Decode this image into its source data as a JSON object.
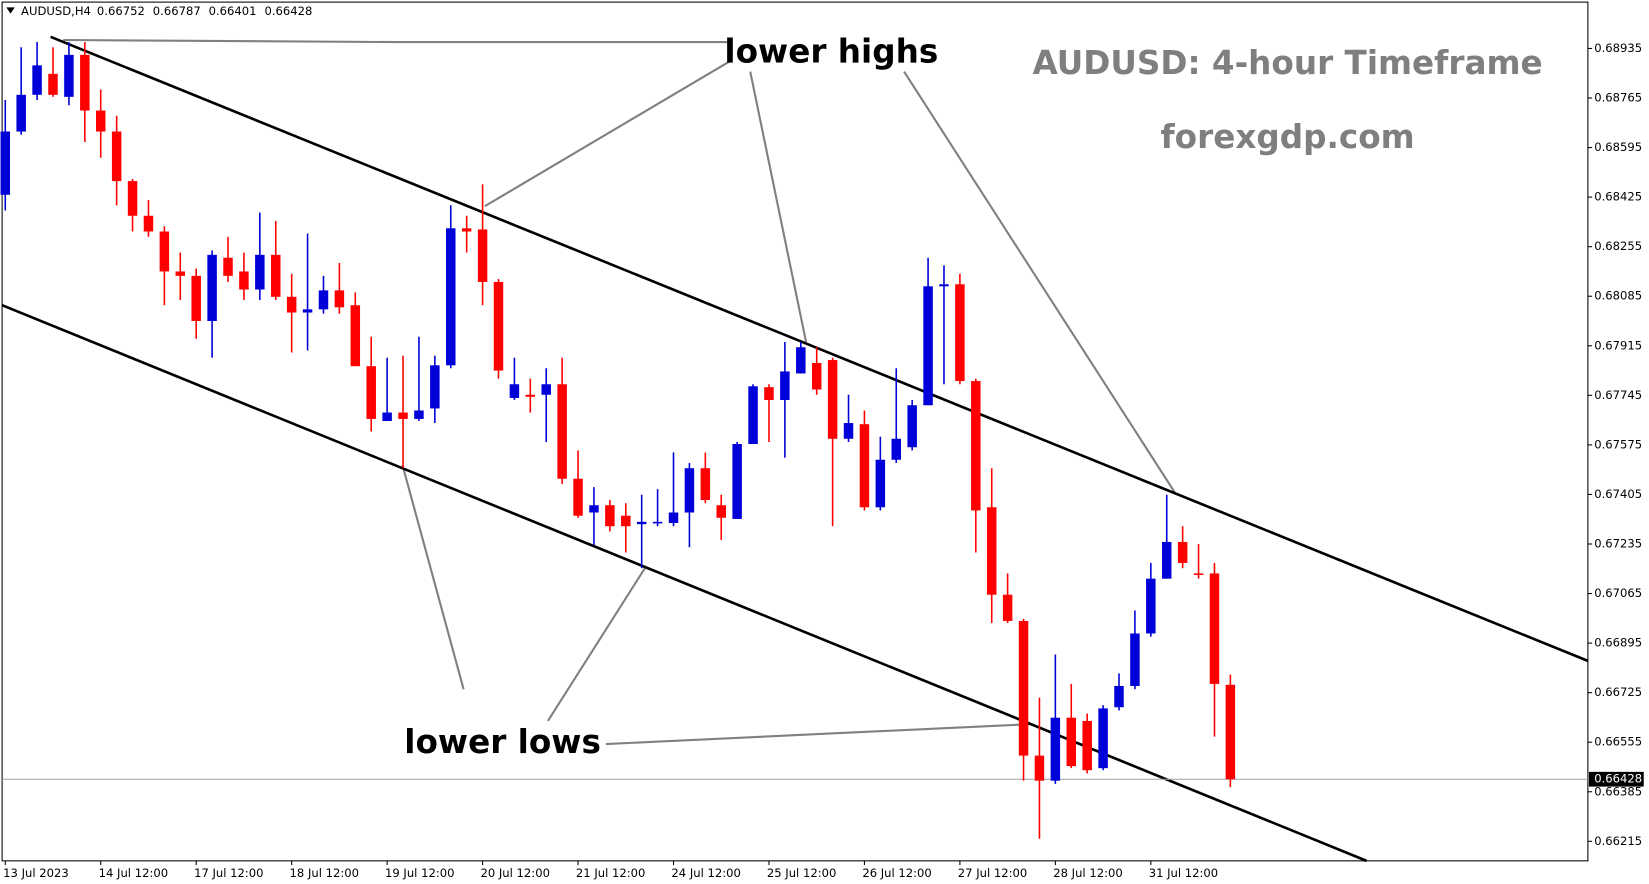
{
  "chart_data": {
    "type": "candlestick",
    "symbol": "AUDUSD,H4",
    "title": "AUDUSD: 4-hour Timeframe",
    "subtitle": "forexgdp.com",
    "annotations": [
      "lower highs",
      "lower lows"
    ],
    "up_color": "#0000d8",
    "down_color": "#ff0000",
    "categories": [
      "13 Jul 2023",
      null,
      null,
      null,
      null,
      null,
      "14 Jul 12:00",
      null,
      null,
      null,
      null,
      null,
      "17 Jul 12:00",
      null,
      null,
      null,
      null,
      null,
      "18 Jul 12:00",
      null,
      null,
      null,
      null,
      null,
      "19 Jul 12:00",
      null,
      null,
      null,
      null,
      null,
      "20 Jul 12:00",
      null,
      null,
      null,
      null,
      null,
      "21 Jul 12:00",
      null,
      null,
      null,
      null,
      null,
      "24 Jul 12:00",
      null,
      null,
      null,
      null,
      null,
      "25 Jul 12:00",
      null,
      null,
      null,
      null,
      null,
      "26 Jul 12:00",
      null,
      null,
      null,
      null,
      null,
      "27 Jul 12:00",
      null,
      null,
      null,
      null,
      null,
      "28 Jul 12:00",
      null,
      null,
      null,
      null,
      null,
      "31 Jul 12:00",
      null,
      null,
      null,
      null,
      null
    ],
    "open": [
      0.68433,
      0.6865,
      0.68776,
      0.68848,
      0.68769,
      0.68913,
      0.68722,
      0.6865,
      0.6848,
      0.68361,
      0.68307,
      0.6817,
      0.68155,
      0.68,
      0.68217,
      0.6817,
      0.68108,
      0.68227,
      0.68083,
      0.68029,
      0.6804,
      0.68105,
      0.68054,
      0.67845,
      0.67657,
      0.67686,
      0.67664,
      0.677,
      0.67848,
      0.68318,
      0.68314,
      0.68134,
      0.67736,
      0.67747,
      0.67747,
      0.67783,
      0.67459,
      0.67343,
      0.67368,
      0.67332,
      0.67303,
      0.67307,
      0.67307,
      0.67343,
      0.67495,
      0.67368,
      0.67321,
      0.67578,
      0.67773,
      0.67729,
      0.6782,
      0.67856,
      0.67866,
      0.67596,
      0.67646,
      0.67361,
      0.67524,
      0.67567,
      0.67711,
      0.68119,
      0.68126,
      0.67794,
      0.67361,
      0.67061,
      0.66971,
      0.66509,
      0.66423,
      0.66639,
      0.66628,
      0.66466,
      0.66675,
      0.66748,
      0.66928,
      0.67116,
      0.67242,
      0.67134,
      0.67134,
      0.66752
    ],
    "high": [
      0.68758,
      0.68939,
      0.68957,
      0.68939,
      0.68957,
      0.68957,
      0.68794,
      0.68704,
      0.68487,
      0.68415,
      0.68325,
      0.68235,
      0.6818,
      0.68242,
      0.68289,
      0.68235,
      0.68372,
      0.68343,
      0.68162,
      0.683,
      0.68155,
      0.68199,
      0.68098,
      0.67946,
      0.67874,
      0.67881,
      0.67946,
      0.67881,
      0.68397,
      0.68361,
      0.68469,
      0.68144,
      0.67874,
      0.67802,
      0.67838,
      0.67874,
      0.67556,
      0.6743,
      0.67386,
      0.67375,
      0.67404,
      0.67423,
      0.67549,
      0.67513,
      0.67549,
      0.67404,
      0.67585,
      0.67783,
      0.67783,
      0.67928,
      0.67928,
      0.6791,
      0.67874,
      0.67747,
      0.67693,
      0.67603,
      0.67838,
      0.67729,
      0.68217,
      0.68191,
      0.68162,
      0.67802,
      0.67495,
      0.67134,
      0.66978,
      0.66708,
      0.66856,
      0.66755,
      0.66653,
      0.66682,
      0.66791,
      0.67007,
      0.6717,
      0.67404,
      0.67296,
      0.67235,
      0.6717,
      0.66787
    ],
    "low": [
      0.68379,
      0.68639,
      0.68758,
      0.68769,
      0.6874,
      0.68614,
      0.6856,
      0.68397,
      0.68307,
      0.68289,
      0.68054,
      0.68072,
      0.67939,
      0.67874,
      0.68134,
      0.68072,
      0.68072,
      0.68072,
      0.67892,
      0.67899,
      0.68025,
      0.68025,
      0.67845,
      0.67621,
      0.67657,
      0.67495,
      0.67657,
      0.6765,
      0.67838,
      0.68235,
      0.68054,
      0.67802,
      0.67729,
      0.67686,
      0.67585,
      0.67441,
      0.67325,
      0.67231,
      0.67278,
      0.67206,
      0.67152,
      0.67296,
      0.67296,
      0.67224,
      0.67375,
      0.67249,
      0.67321,
      0.67578,
      0.67585,
      0.67531,
      0.6782,
      0.67747,
      0.67296,
      0.67585,
      0.6735,
      0.6735,
      0.67513,
      0.67556,
      0.67711,
      0.67783,
      0.67783,
      0.67206,
      0.66964,
      0.66964,
      0.66423,
      0.66224,
      0.66412,
      0.66466,
      0.66448,
      0.66459,
      0.66664,
      0.66737,
      0.66917,
      0.67116,
      0.67152,
      0.67116,
      0.66574,
      0.66401
    ],
    "close": [
      0.6865,
      0.68776,
      0.68877,
      0.68776,
      0.68913,
      0.68722,
      0.6865,
      0.6848,
      0.68361,
      0.68307,
      0.6817,
      0.68155,
      0.68,
      0.68227,
      0.68155,
      0.68108,
      0.68227,
      0.68083,
      0.68029,
      0.6804,
      0.68105,
      0.68047,
      0.67845,
      0.67664,
      0.67686,
      0.67664,
      0.67693,
      0.67848,
      0.68318,
      0.68307,
      0.68134,
      0.6783,
      0.67783,
      0.6774,
      0.67783,
      0.67459,
      0.67332,
      0.67368,
      0.67296,
      0.67296,
      0.67311,
      0.67311,
      0.67343,
      0.67495,
      0.67386,
      0.67325,
      0.67578,
      0.67776,
      0.67729,
      0.67827,
      0.6791,
      0.67765,
      0.67596,
      0.6765,
      0.67361,
      0.67524,
      0.67596,
      0.67711,
      0.68119,
      0.68126,
      0.67794,
      0.6735,
      0.67061,
      0.66971,
      0.66509,
      0.66423,
      0.66639,
      0.66473,
      0.66459,
      0.66671,
      0.66748,
      0.66928,
      0.67116,
      0.67242,
      0.6717,
      0.6713,
      0.66755,
      0.66428
    ],
    "last_price": 0.66428,
    "ylim": [
      0.66148,
      0.69094
    ],
    "yticks": [
      0.68935,
      0.68765,
      0.68595,
      0.68425,
      0.68255,
      0.68085,
      0.67915,
      0.67745,
      0.67575,
      0.67405,
      0.67235,
      0.67065,
      0.66895,
      0.66725,
      0.66555,
      0.66385,
      0.66215
    ]
  }
}
